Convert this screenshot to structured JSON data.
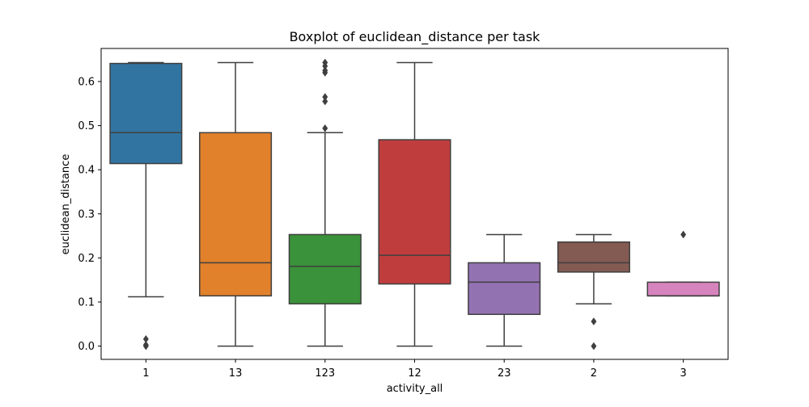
{
  "chart_data": {
    "type": "boxplot",
    "title": "Boxplot of euclidean_distance per task",
    "xlabel": "activity_all",
    "ylabel": "euclidean_distance",
    "ylim": [
      -0.03,
      0.675
    ],
    "yticks": [
      0.0,
      0.1,
      0.2,
      0.3,
      0.4,
      0.5,
      0.6
    ],
    "ytick_labels": [
      "0.0",
      "0.1",
      "0.2",
      "0.3",
      "0.4",
      "0.5",
      "0.6"
    ],
    "grid": false,
    "categories": [
      "1",
      "13",
      "123",
      "12",
      "23",
      "2",
      "3"
    ],
    "boxes": [
      {
        "category": "1",
        "color": "#3274a1",
        "whisker_low": 0.112,
        "q1": 0.414,
        "median": 0.484,
        "q3": 0.641,
        "whisker_high": 0.643,
        "outliers": [
          0.016,
          0.0,
          0.003
        ]
      },
      {
        "category": "13",
        "color": "#e1812c",
        "whisker_low": 0.0,
        "q1": 0.114,
        "median": 0.189,
        "q3": 0.484,
        "whisker_high": 0.643,
        "outliers": []
      },
      {
        "category": "123",
        "color": "#3a923a",
        "whisker_low": 0.0,
        "q1": 0.096,
        "median": 0.181,
        "q3": 0.253,
        "whisker_high": 0.484,
        "outliers": [
          0.494,
          0.555,
          0.565,
          0.62,
          0.625,
          0.635,
          0.643
        ]
      },
      {
        "category": "12",
        "color": "#c03d3e",
        "whisker_low": 0.0,
        "q1": 0.141,
        "median": 0.206,
        "q3": 0.468,
        "whisker_high": 0.643,
        "outliers": []
      },
      {
        "category": "23",
        "color": "#9372b2",
        "whisker_low": 0.0,
        "q1": 0.072,
        "median": 0.145,
        "q3": 0.189,
        "whisker_high": 0.253,
        "outliers": []
      },
      {
        "category": "2",
        "color": "#845b53",
        "whisker_low": 0.096,
        "q1": 0.168,
        "median": 0.189,
        "q3": 0.236,
        "whisker_high": 0.253,
        "outliers": [
          0.056,
          0.0
        ]
      },
      {
        "category": "3",
        "color": "#d684bd",
        "whisker_low": 0.114,
        "q1": 0.114,
        "median": 0.114,
        "q3": 0.145,
        "whisker_high": 0.145,
        "outliers": [
          0.253
        ]
      }
    ],
    "line_color": "#3f3f3f"
  }
}
